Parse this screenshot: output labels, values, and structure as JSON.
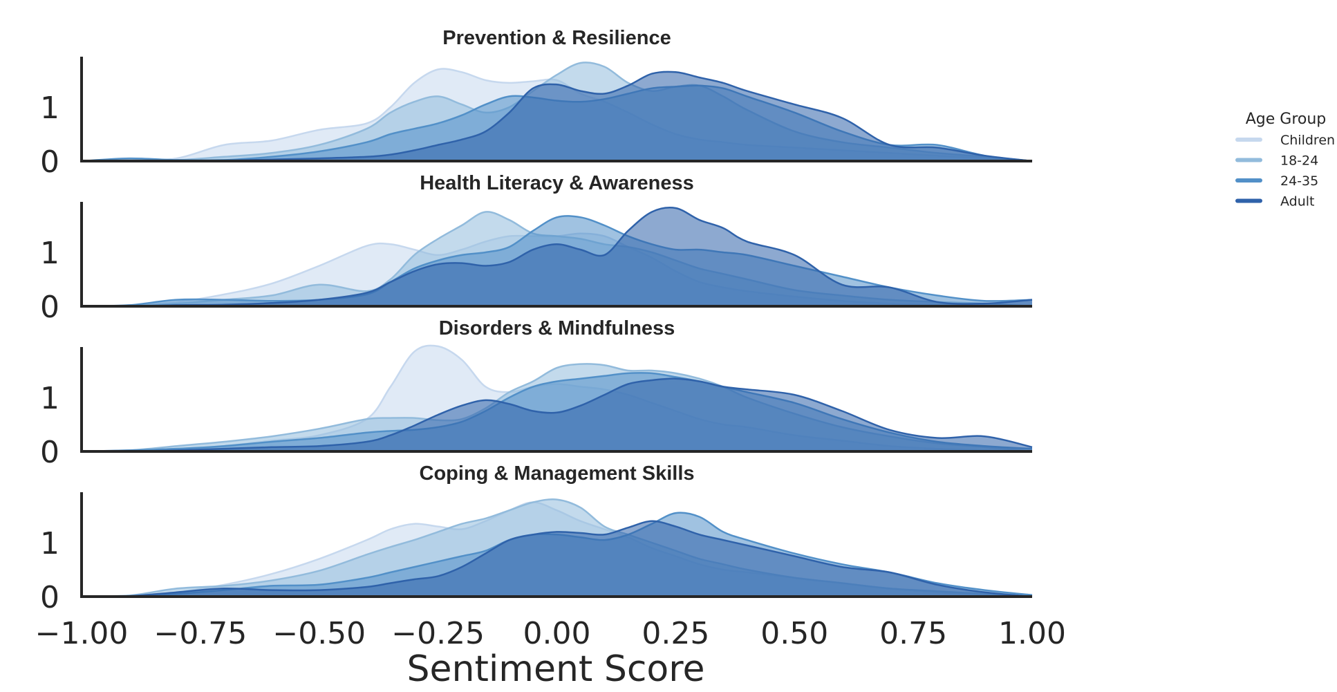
{
  "chart_data": {
    "type": "area",
    "xlabel": "Sentiment Score",
    "xlim": [
      -1.0,
      1.0
    ],
    "x_ticks": [
      "−1.00",
      "−0.75",
      "−0.50",
      "−0.25",
      "0.00",
      "0.25",
      "0.50",
      "0.75",
      "1.00"
    ],
    "x_tick_values": [
      -1.0,
      -0.75,
      -0.5,
      -0.25,
      0.0,
      0.25,
      0.5,
      0.75,
      1.0
    ],
    "ylim": [
      0,
      1.9
    ],
    "y_ticks": [
      "0",
      "1"
    ],
    "y_tick_values": [
      0,
      1
    ],
    "grid": false,
    "legend": {
      "title": "Age Group",
      "placement": "right",
      "entries": [
        "Children",
        "18-24",
        "24-35",
        "Adult"
      ]
    },
    "colors": {
      "Children": "#c6d8ee",
      "18-24": "#92bbdc",
      "24-35": "#5290c8",
      "Adult": "#2f62aa"
    },
    "x": [
      -1.0,
      -0.9,
      -0.8,
      -0.7,
      -0.6,
      -0.5,
      -0.4,
      -0.35,
      -0.3,
      -0.25,
      -0.2,
      -0.15,
      -0.1,
      -0.05,
      0.0,
      0.05,
      0.1,
      0.15,
      0.2,
      0.25,
      0.3,
      0.35,
      0.4,
      0.5,
      0.6,
      0.7,
      0.8,
      0.9,
      1.0
    ],
    "panels": [
      {
        "title": "Prevention & Resilience",
        "series": [
          {
            "name": "Children",
            "values": [
              0,
              0.01,
              0.05,
              0.3,
              0.38,
              0.58,
              0.7,
              1.0,
              1.45,
              1.7,
              1.65,
              1.5,
              1.45,
              1.48,
              1.5,
              1.25,
              1.1,
              0.9,
              0.68,
              0.5,
              0.4,
              0.35,
              0.3,
              0.25,
              0.2,
              0.15,
              0.1,
              0.05,
              0
            ]
          },
          {
            "name": "18-24",
            "values": [
              0,
              0.01,
              0.02,
              0.08,
              0.15,
              0.3,
              0.6,
              0.9,
              1.1,
              1.2,
              1.05,
              0.9,
              1.0,
              1.3,
              1.6,
              1.82,
              1.75,
              1.45,
              1.3,
              1.38,
              1.4,
              1.2,
              0.95,
              0.55,
              0.35,
              0.25,
              0.15,
              0.08,
              0
            ]
          },
          {
            "name": "24-35",
            "values": [
              0,
              0.05,
              0.02,
              0.02,
              0.08,
              0.18,
              0.35,
              0.5,
              0.6,
              0.7,
              0.85,
              1.05,
              1.2,
              1.18,
              1.12,
              1.1,
              1.15,
              1.25,
              1.35,
              1.38,
              1.4,
              1.35,
              1.2,
              0.9,
              0.55,
              0.3,
              0.3,
              0.1,
              0
            ]
          },
          {
            "name": "Adult",
            "values": [
              0,
              0,
              0,
              0.01,
              0.03,
              0.05,
              0.08,
              0.12,
              0.2,
              0.3,
              0.4,
              0.55,
              0.9,
              1.35,
              1.42,
              1.3,
              1.25,
              1.4,
              1.62,
              1.65,
              1.55,
              1.45,
              1.3,
              1.05,
              0.8,
              0.3,
              0.25,
              0.1,
              0
            ]
          }
        ]
      },
      {
        "title": "Health Literacy & Awareness",
        "series": [
          {
            "name": "Children",
            "values": [
              0,
              0.02,
              0.08,
              0.22,
              0.42,
              0.75,
              1.12,
              1.15,
              1.05,
              0.95,
              1.05,
              1.2,
              1.3,
              1.3,
              1.3,
              1.35,
              1.3,
              1.1,
              0.9,
              0.65,
              0.45,
              0.35,
              0.28,
              0.18,
              0.1,
              0.05,
              0.03,
              0.02,
              0
            ]
          },
          {
            "name": "18-24",
            "values": [
              0,
              0.01,
              0.05,
              0.12,
              0.2,
              0.4,
              0.28,
              0.5,
              0.95,
              1.25,
              1.5,
              1.75,
              1.6,
              1.35,
              1.3,
              1.25,
              1.15,
              1.1,
              1.0,
              0.85,
              0.7,
              0.6,
              0.5,
              0.3,
              0.2,
              0.12,
              0.08,
              0.05,
              0
            ]
          },
          {
            "name": "24-35",
            "values": [
              0,
              0.02,
              0.12,
              0.12,
              0.1,
              0.12,
              0.22,
              0.45,
              0.7,
              0.85,
              0.95,
              1.0,
              1.1,
              1.4,
              1.65,
              1.65,
              1.5,
              1.3,
              1.15,
              1.05,
              1.05,
              1.0,
              0.95,
              0.75,
              0.55,
              0.35,
              0.2,
              0.1,
              0.12
            ]
          },
          {
            "name": "Adult",
            "values": [
              0,
              0,
              0.02,
              0.03,
              0.06,
              0.12,
              0.25,
              0.45,
              0.65,
              0.78,
              0.8,
              0.75,
              0.82,
              1.05,
              1.15,
              1.05,
              0.95,
              1.4,
              1.75,
              1.82,
              1.6,
              1.45,
              1.2,
              0.95,
              0.4,
              0.35,
              0.08,
              0.05,
              0.12
            ]
          }
        ]
      },
      {
        "title": "Disorders & Mindfulness",
        "series": [
          {
            "name": "Children",
            "values": [
              0,
              0.02,
              0.05,
              0.1,
              0.2,
              0.3,
              0.6,
              1.2,
              1.85,
              1.95,
              1.7,
              1.2,
              1.1,
              1.2,
              1.25,
              1.2,
              1.15,
              1.05,
              0.9,
              0.75,
              0.6,
              0.5,
              0.45,
              0.3,
              0.2,
              0.1,
              0.05,
              0.02,
              0
            ]
          },
          {
            "name": "18-24",
            "values": [
              0,
              0.02,
              0.1,
              0.18,
              0.28,
              0.42,
              0.6,
              0.62,
              0.62,
              0.58,
              0.6,
              0.8,
              1.1,
              1.3,
              1.55,
              1.62,
              1.6,
              1.5,
              1.5,
              1.45,
              1.35,
              1.2,
              1.0,
              0.7,
              0.45,
              0.28,
              0.15,
              0.08,
              0
            ]
          },
          {
            "name": "24-35",
            "values": [
              0,
              0.02,
              0.05,
              0.1,
              0.18,
              0.25,
              0.35,
              0.38,
              0.4,
              0.45,
              0.55,
              0.75,
              1.0,
              1.2,
              1.3,
              1.35,
              1.4,
              1.45,
              1.45,
              1.38,
              1.3,
              1.2,
              1.1,
              0.9,
              0.6,
              0.35,
              0.18,
              0.1,
              0.05
            ]
          },
          {
            "name": "Adult",
            "values": [
              0,
              0,
              0.02,
              0.05,
              0.08,
              0.1,
              0.18,
              0.3,
              0.48,
              0.68,
              0.85,
              0.95,
              0.88,
              0.75,
              0.72,
              0.85,
              1.05,
              1.25,
              1.32,
              1.35,
              1.3,
              1.2,
              1.15,
              1.05,
              0.75,
              0.4,
              0.25,
              0.28,
              0.08
            ]
          }
        ]
      },
      {
        "title": "Coping & Management Skills",
        "series": [
          {
            "name": "Children",
            "values": [
              0,
              0.02,
              0.08,
              0.22,
              0.42,
              0.7,
              1.05,
              1.25,
              1.35,
              1.3,
              1.25,
              1.4,
              1.6,
              1.75,
              1.6,
              1.4,
              1.25,
              1.1,
              0.9,
              0.75,
              0.6,
              0.5,
              0.45,
              0.35,
              0.25,
              0.15,
              0.08,
              0.04,
              0
            ]
          },
          {
            "name": "18-24",
            "values": [
              0,
              0.02,
              0.15,
              0.2,
              0.3,
              0.48,
              0.78,
              0.92,
              1.05,
              1.2,
              1.35,
              1.45,
              1.6,
              1.75,
              1.8,
              1.65,
              1.3,
              1.15,
              1.0,
              0.85,
              0.7,
              0.6,
              0.5,
              0.35,
              0.25,
              0.15,
              0.1,
              0.05,
              0
            ]
          },
          {
            "name": "24-35",
            "values": [
              0,
              0.01,
              0.05,
              0.12,
              0.2,
              0.22,
              0.35,
              0.45,
              0.55,
              0.65,
              0.75,
              0.85,
              1.05,
              1.15,
              1.15,
              1.1,
              1.05,
              1.15,
              1.35,
              1.55,
              1.48,
              1.2,
              1.05,
              0.8,
              0.6,
              0.45,
              0.25,
              0.12,
              0.03
            ]
          },
          {
            "name": "Adult",
            "values": [
              0,
              0.01,
              0.08,
              0.15,
              0.12,
              0.12,
              0.18,
              0.25,
              0.32,
              0.38,
              0.55,
              0.8,
              1.05,
              1.15,
              1.2,
              1.18,
              1.15,
              1.28,
              1.4,
              1.3,
              1.15,
              1.05,
              0.95,
              0.75,
              0.55,
              0.45,
              0.22,
              0.08,
              0
            ]
          }
        ]
      }
    ]
  }
}
